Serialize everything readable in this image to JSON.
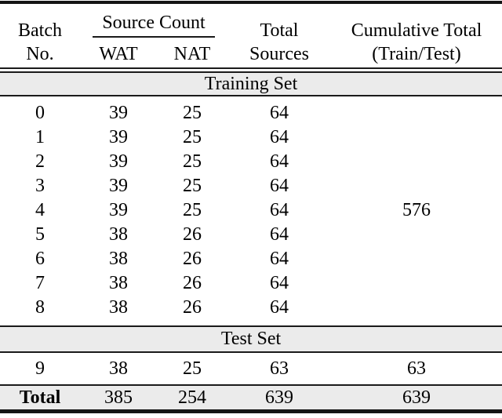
{
  "header": {
    "batch": {
      "line1": "Batch",
      "line2": "No."
    },
    "source_count": "Source Count",
    "wat": "WAT",
    "nat": "NAT",
    "total_sources": {
      "line1": "Total",
      "line2": "Sources"
    },
    "cumulative": {
      "line1": "Cumulative Total",
      "line2": "(Train/Test)"
    }
  },
  "sections": {
    "training": {
      "title": "Training Set",
      "rows": [
        {
          "batch": "0",
          "wat": "39",
          "nat": "25",
          "total": "64",
          "cumulative": ""
        },
        {
          "batch": "1",
          "wat": "39",
          "nat": "25",
          "total": "64",
          "cumulative": ""
        },
        {
          "batch": "2",
          "wat": "39",
          "nat": "25",
          "total": "64",
          "cumulative": ""
        },
        {
          "batch": "3",
          "wat": "39",
          "nat": "25",
          "total": "64",
          "cumulative": ""
        },
        {
          "batch": "4",
          "wat": "39",
          "nat": "25",
          "total": "64",
          "cumulative": "576"
        },
        {
          "batch": "5",
          "wat": "38",
          "nat": "26",
          "total": "64",
          "cumulative": ""
        },
        {
          "batch": "6",
          "wat": "38",
          "nat": "26",
          "total": "64",
          "cumulative": ""
        },
        {
          "batch": "7",
          "wat": "38",
          "nat": "26",
          "total": "64",
          "cumulative": ""
        },
        {
          "batch": "8",
          "wat": "38",
          "nat": "26",
          "total": "64",
          "cumulative": ""
        }
      ]
    },
    "test": {
      "title": "Test Set",
      "rows": [
        {
          "batch": "9",
          "wat": "38",
          "nat": "25",
          "total": "63",
          "cumulative": "63"
        }
      ]
    }
  },
  "total_row": {
    "batch": "Total",
    "wat": "385",
    "nat": "254",
    "total": "639",
    "cumulative": "639"
  },
  "colors": {
    "band_background": "#ebebeb",
    "rule": "#1a1a1a",
    "text": "#000000"
  }
}
